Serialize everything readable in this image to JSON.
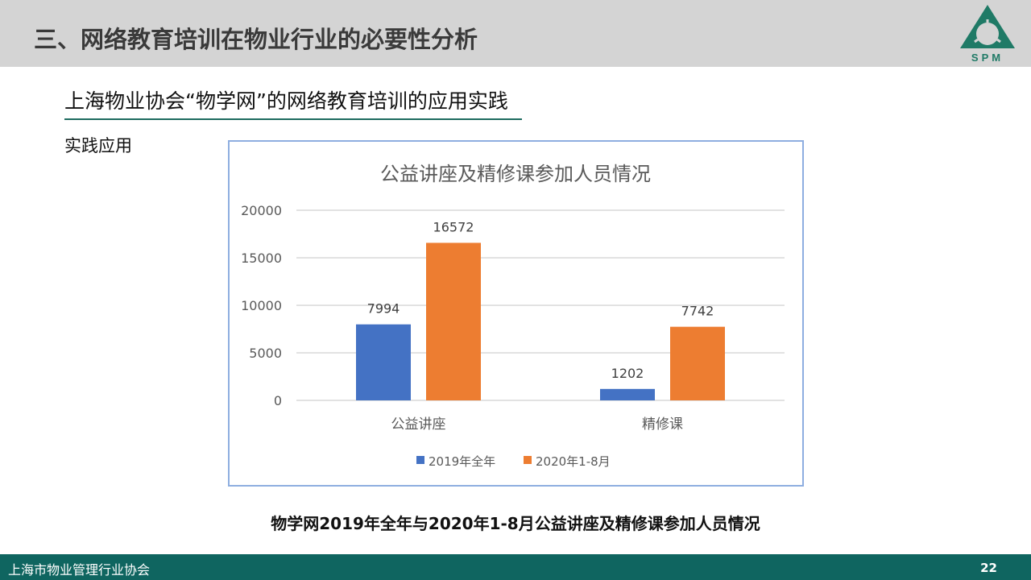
{
  "header": {
    "title": "三、网络教育培训在物业行业的必要性分析",
    "logo_text": "SPM"
  },
  "subtitle": "上海物业协会“物学网”的网络教育培训的应用实践",
  "section_label": "实践应用",
  "caption": "物学网2019年全年与2020年1-8月公益讲座及精修课参加人员情况",
  "footer": {
    "org": "上海市物业管理行业协会",
    "page": "22"
  },
  "colors": {
    "series1": "#4472c4",
    "series2": "#ed7d31",
    "footer": "#0f6560",
    "header": "#d4d4d4"
  },
  "chart_data": {
    "type": "bar",
    "title": "公益讲座及精修课参加人员情况",
    "categories": [
      "公益讲座",
      "精修课"
    ],
    "series": [
      {
        "name": "2019年全年",
        "values": [
          7994,
          1202
        ]
      },
      {
        "name": "2020年1-8月",
        "values": [
          16572,
          7742
        ]
      }
    ],
    "ylim": [
      0,
      20000
    ],
    "yticks": [
      "0",
      "5000",
      "10000",
      "15000",
      "20000"
    ],
    "grid": true,
    "legend": "bottom"
  }
}
